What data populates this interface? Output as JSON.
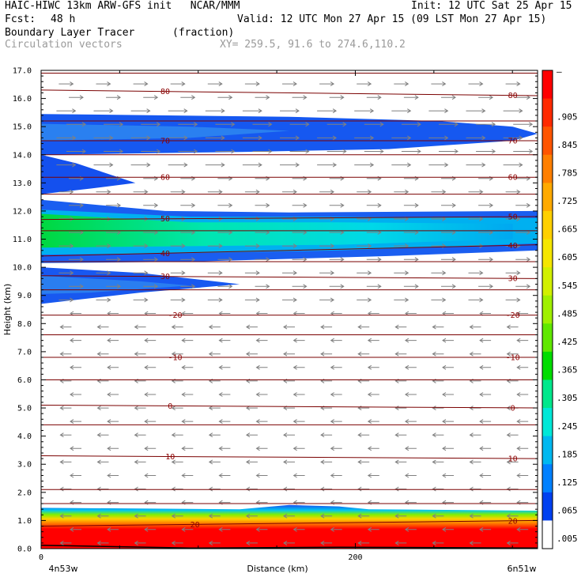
{
  "header": {
    "model": "HAIC-HIWC 13km ARW-GFS init   NCAR/MMM",
    "init": "Init: 12 UTC Sat 25 Apr 15",
    "fcst_label": "Fcst:",
    "fcst_value": "48 h",
    "valid": "Valid: 12 UTC Mon 27 Apr 15 (09 LST Mon 27 Apr 15)",
    "field": "Boundary Layer Tracer",
    "units": "(fraction)",
    "field2": "Circulation vectors",
    "xy": "XY= 259.5, 91.6 to 274.6,110.2"
  },
  "chart_data": {
    "type": "heatmap",
    "ylabel": "Height (km)",
    "xlabel": "Distance (km)",
    "ylim": [
      0,
      17
    ],
    "xlim": [
      0,
      316
    ],
    "y_ticks": [
      "0.0",
      "1.0",
      "2.0",
      "3.0",
      "4.0",
      "5.0",
      "6.0",
      "7.0",
      "8.0",
      "9.0",
      "10.0",
      "11.0",
      "12.0",
      "13.0",
      "14.0",
      "15.0",
      "16.0",
      "17.0"
    ],
    "x_ticks": [
      {
        "v": 0,
        "label": "0"
      },
      {
        "v": 200,
        "label": "200"
      }
    ],
    "x_left_label": "4n53w",
    "x_right_label": "6n51w",
    "colorbar": {
      "labels": [
        "–",
        ".905",
        ".845",
        ".785",
        ".725",
        ".665",
        ".605",
        ".545",
        ".485",
        ".425",
        ".365",
        ".305",
        ".245",
        ".185",
        ".125",
        ".065",
        ".005"
      ],
      "colors": [
        "#ff0000",
        "#ff2a00",
        "#ff5500",
        "#ff7f00",
        "#ffaa00",
        "#ffd000",
        "#f5e600",
        "#d2f000",
        "#a0f000",
        "#60e800",
        "#00dd00",
        "#00e88c",
        "#00e8d8",
        "#00b8f0",
        "#0080ff",
        "#0040f0",
        "#ffffff"
      ]
    },
    "isotherms": [
      {
        "label": "80",
        "y0": 16.3,
        "y1": 16.1,
        "lx": [
          0.25,
          0.95
        ]
      },
      {
        "label": "70",
        "y0": 14.5,
        "y1": 14.5,
        "lx": [
          0.25,
          0.95
        ]
      },
      {
        "label": "60",
        "y0": 13.2,
        "y1": 13.2,
        "lx": [
          0.25,
          0.95
        ]
      },
      {
        "label": "50",
        "y0": 11.7,
        "y1": 11.8,
        "lx": [
          0.25,
          0.95
        ]
      },
      {
        "label": "40",
        "y0": 10.4,
        "y1": 10.8,
        "lx": [
          0.25,
          0.95
        ]
      },
      {
        "label": "30",
        "y0": 9.7,
        "y1": 9.6,
        "lx": [
          0.25,
          0.95
        ]
      },
      {
        "label": "-20",
        "y0": 8.3,
        "y1": 8.3,
        "lx": [
          0.27,
          0.95
        ]
      },
      {
        "label": "-10",
        "y0": 6.8,
        "y1": 6.8,
        "lx": [
          0.27,
          0.95
        ]
      },
      {
        "label": "0",
        "y0": 5.1,
        "y1": 5.0,
        "lx": [
          0.26,
          0.95
        ]
      },
      {
        "label": "10",
        "y0": 3.3,
        "y1": 3.2,
        "lx": [
          0.26,
          0.95
        ]
      },
      {
        "label": "20",
        "y0": 0.8,
        "y1": 1.0,
        "lx": [
          0.31,
          0.95
        ]
      }
    ],
    "extra_contours": [
      16.9,
      15.2,
      14.0,
      12.6,
      11.3,
      10.2,
      9.2,
      7.6,
      6.0,
      4.4,
      2.1,
      1.6
    ]
  }
}
